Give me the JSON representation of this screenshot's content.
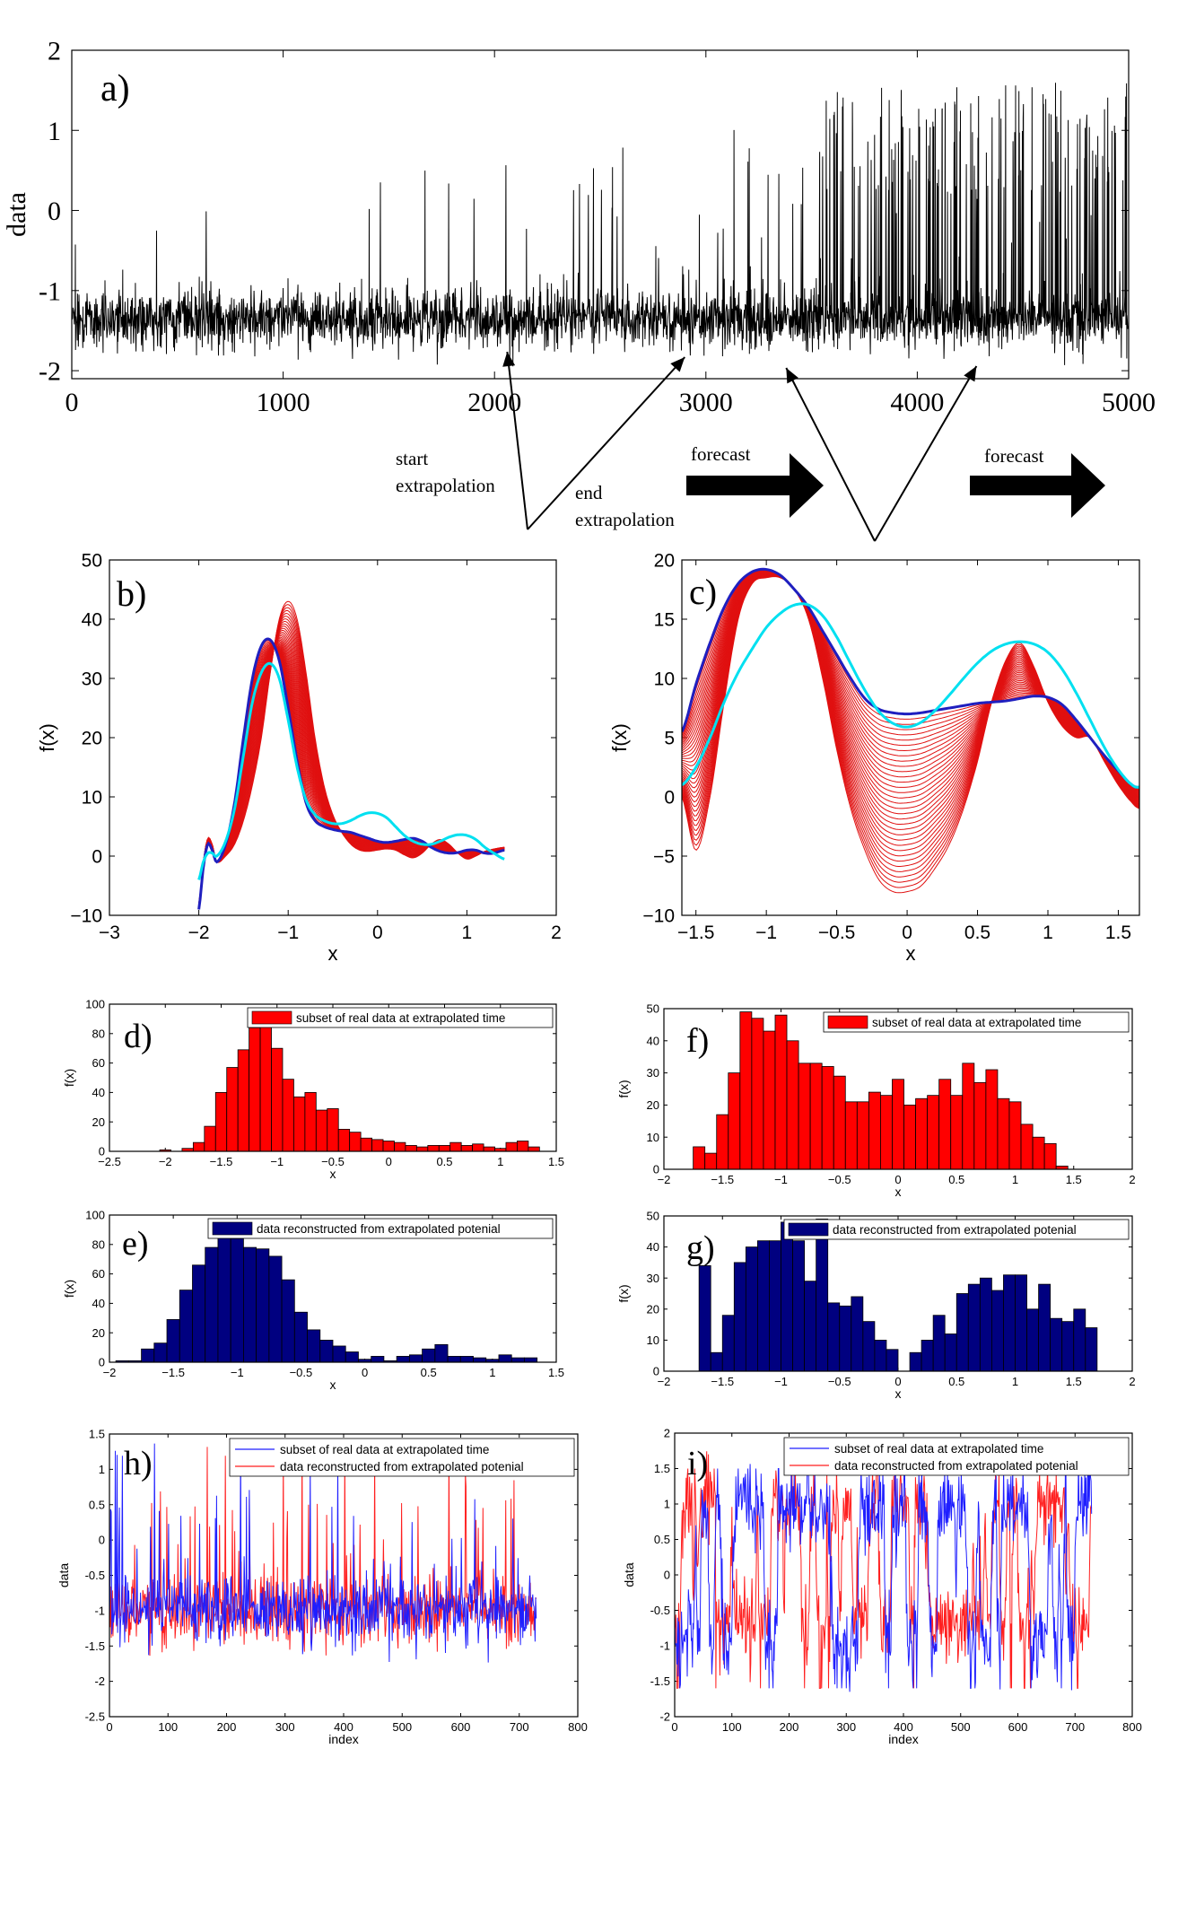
{
  "chart_data": [
    {
      "id": "a",
      "type": "line",
      "panel_label": "a)",
      "ylabel": "data",
      "xlabel": "",
      "xlim": [
        0,
        5000
      ],
      "ylim": [
        -2.1,
        2
      ],
      "xticks": [
        0,
        1000,
        2000,
        3000,
        4000,
        5000
      ],
      "yticks": [
        -2,
        -1,
        0,
        1,
        2
      ],
      "color": "#000000",
      "series_description": "noisy time series of 5000 samples, baseline near -1.3 with upward spikes; spikes grow in frequency and height after index 3500 reaching about 1.6",
      "annotations": {
        "start_extrapolation": [
          "start",
          "extrapolation"
        ],
        "end_extrapolation": [
          "end",
          "extrapolation"
        ],
        "forecast_1": "forecast",
        "forecast_2": "forecast",
        "arrow_targets_x": [
          2060,
          2900,
          3380,
          4280
        ],
        "forecast_arrow_spans_x": [
          2930,
          3560,
          4270,
          4900
        ]
      }
    },
    {
      "id": "b",
      "type": "line",
      "panel_label": "b)",
      "xlabel": "x",
      "ylabel": "f(x)",
      "xlim": [
        -3,
        2
      ],
      "ylim": [
        -10,
        50
      ],
      "xticks": [
        -3,
        -2,
        -1,
        0,
        1,
        2
      ],
      "xtick_labels": [
        "−3",
        "−2",
        "−1",
        "0",
        "1",
        "2"
      ],
      "yticks": [
        -10,
        0,
        10,
        20,
        30,
        40,
        50
      ],
      "ytick_labels": [
        "−10",
        "0",
        "10",
        "20",
        "30",
        "40",
        "50"
      ],
      "series": [
        {
          "name": "potential start (blue)",
          "color": "#1f1fbf",
          "x": [
            -2.0,
            -1.95,
            -1.9,
            -1.85,
            -1.8,
            -1.7,
            -1.6,
            -1.5,
            -1.4,
            -1.3,
            -1.2,
            -1.1,
            -1.0,
            -0.9,
            -0.8,
            -0.7,
            -0.6,
            -0.5,
            -0.4,
            -0.3,
            -0.2,
            -0.1,
            0.0,
            0.1,
            0.2,
            0.3,
            0.4,
            0.5,
            0.6,
            0.7,
            0.8,
            0.9,
            1.0,
            1.1,
            1.2,
            1.3,
            1.42
          ],
          "y": [
            -9,
            -2,
            2,
            1,
            -1,
            2,
            9,
            20,
            30,
            35.5,
            36.5,
            33,
            25,
            16,
            9,
            6,
            5,
            4.5,
            4.2,
            4,
            3.5,
            3,
            2.5,
            2.3,
            2.5,
            2.8,
            3,
            2.5,
            1.5,
            0.8,
            0.5,
            0.6,
            1,
            1,
            0.5,
            0.5,
            1
          ]
        },
        {
          "name": "potential end (red envelope)",
          "color": "#e01010",
          "x": [
            -2.0,
            -1.95,
            -1.9,
            -1.85,
            -1.8,
            -1.7,
            -1.6,
            -1.5,
            -1.4,
            -1.3,
            -1.2,
            -1.1,
            -1.0,
            -0.9,
            -0.8,
            -0.7,
            -0.6,
            -0.5,
            -0.4,
            -0.3,
            -0.2,
            -0.1,
            0.0,
            0.1,
            0.2,
            0.3,
            0.4,
            0.5,
            0.6,
            0.7,
            0.8,
            0.9,
            1.0,
            1.1,
            1.2,
            1.3,
            1.42
          ],
          "y": [
            -8,
            -1,
            3,
            2,
            -1,
            0,
            2,
            6,
            12,
            20,
            31,
            40,
            43,
            40,
            31,
            20,
            12,
            7,
            4,
            2,
            1,
            0.8,
            1.0,
            1.2,
            1.0,
            0.2,
            -0.3,
            0.5,
            2,
            2.8,
            2,
            0.5,
            -0.5,
            0.0,
            0.8,
            1.2,
            1.5
          ]
        },
        {
          "name": "fitted potential (cyan)",
          "color": "#00e0f0",
          "x": [
            -2.0,
            -1.95,
            -1.9,
            -1.85,
            -1.8,
            -1.7,
            -1.6,
            -1.5,
            -1.4,
            -1.3,
            -1.2,
            -1.1,
            -1.0,
            -0.9,
            -0.8,
            -0.7,
            -0.6,
            -0.5,
            -0.4,
            -0.3,
            -0.2,
            -0.1,
            0.0,
            0.1,
            0.2,
            0.3,
            0.4,
            0.5,
            0.6,
            0.7,
            0.8,
            0.9,
            1.0,
            1.1,
            1.2,
            1.3,
            1.42
          ],
          "y": [
            -4,
            -1,
            0.5,
            0.5,
            0,
            2.5,
            8,
            17,
            26,
            31,
            32.5,
            30,
            23,
            15,
            9.5,
            7,
            6,
            5.5,
            5.5,
            6,
            6.8,
            7.3,
            7.2,
            6.5,
            5,
            3.5,
            2.5,
            2,
            2,
            2.5,
            3.2,
            3.6,
            3.5,
            2.8,
            1.5,
            0.5,
            -0.5
          ]
        }
      ]
    },
    {
      "id": "c",
      "type": "line",
      "panel_label": "c)",
      "xlabel": "x",
      "ylabel": "f(x)",
      "xlim": [
        -1.6,
        1.65
      ],
      "ylim": [
        -10,
        20
      ],
      "xticks": [
        -1.5,
        -1,
        -0.5,
        0,
        0.5,
        1,
        1.5
      ],
      "xtick_labels": [
        "−1.5",
        "−1",
        "−0.5",
        "0",
        "0.5",
        "1",
        "1.5"
      ],
      "yticks": [
        -10,
        -5,
        0,
        5,
        10,
        15,
        20
      ],
      "ytick_labels": [
        "−10",
        "−5",
        "0",
        "5",
        "10",
        "15",
        "20"
      ],
      "series": [
        {
          "name": "potential start (blue)",
          "color": "#1f1fbf",
          "x": [
            -1.6,
            -1.5,
            -1.4,
            -1.3,
            -1.2,
            -1.1,
            -1.0,
            -0.9,
            -0.8,
            -0.7,
            -0.6,
            -0.5,
            -0.4,
            -0.3,
            -0.2,
            -0.1,
            0.0,
            0.1,
            0.2,
            0.3,
            0.4,
            0.5,
            0.6,
            0.7,
            0.8,
            0.9,
            1.0,
            1.1,
            1.2,
            1.3,
            1.4,
            1.5,
            1.6,
            1.65
          ],
          "y": [
            5.5,
            9.5,
            13,
            16,
            18,
            19,
            19.2,
            18.7,
            17.5,
            16,
            14,
            12,
            10,
            8.3,
            7.4,
            7.1,
            7.0,
            7.1,
            7.3,
            7.5,
            7.7,
            7.9,
            8.0,
            8.1,
            8.3,
            8.5,
            8.4,
            7.8,
            6.5,
            5,
            3.5,
            2.2,
            1.0,
            0.8
          ]
        },
        {
          "name": "potential end (red envelope)",
          "color": "#e01010",
          "x": [
            -1.6,
            -1.5,
            -1.4,
            -1.3,
            -1.2,
            -1.1,
            -1.0,
            -0.9,
            -0.8,
            -0.7,
            -0.6,
            -0.5,
            -0.4,
            -0.3,
            -0.2,
            -0.1,
            0.0,
            0.1,
            0.2,
            0.3,
            0.4,
            0.5,
            0.6,
            0.7,
            0.8,
            0.9,
            1.0,
            1.1,
            1.2,
            1.3,
            1.4,
            1.5,
            1.6,
            1.65
          ],
          "y": [
            0,
            -4.5,
            0,
            8,
            15,
            18,
            18.5,
            18.5,
            17.5,
            15,
            10,
            4,
            -1,
            -4.5,
            -7,
            -8,
            -8,
            -7.5,
            -6,
            -4,
            -1,
            3,
            8,
            11.5,
            13,
            11,
            8,
            6,
            5,
            5,
            3,
            1,
            -0.5,
            -1
          ]
        },
        {
          "name": "fitted potential (cyan)",
          "color": "#00e0f0",
          "x": [
            -1.6,
            -1.5,
            -1.4,
            -1.3,
            -1.2,
            -1.1,
            -1.0,
            -0.9,
            -0.8,
            -0.7,
            -0.6,
            -0.5,
            -0.4,
            -0.3,
            -0.2,
            -0.1,
            0.0,
            0.1,
            0.2,
            0.3,
            0.4,
            0.5,
            0.6,
            0.7,
            0.8,
            0.9,
            1.0,
            1.1,
            1.2,
            1.3,
            1.4,
            1.5,
            1.6,
            1.65
          ],
          "y": [
            1,
            2.5,
            5,
            8,
            10.5,
            12.5,
            14.3,
            15.5,
            16.2,
            16.2,
            15.3,
            13.5,
            11.2,
            9,
            7.2,
            6.2,
            5.9,
            6.3,
            7.3,
            8.6,
            10,
            11.3,
            12.3,
            12.9,
            13.1,
            12.9,
            12.2,
            10.8,
            8.8,
            6.5,
            4.2,
            2.3,
            1.0,
            0.8
          ]
        }
      ]
    },
    {
      "id": "d",
      "type": "bar",
      "panel_label": "d)",
      "xlabel": "x",
      "ylabel": "f(x)",
      "xlim": [
        -2.5,
        1.5
      ],
      "ylim": [
        0,
        100
      ],
      "xticks": [
        -2.5,
        -2,
        -1.5,
        -1,
        -0.5,
        0,
        0.5,
        1,
        1.5
      ],
      "xtick_labels": [
        "−2.5",
        "−2",
        "−1.5",
        "−1",
        "−0.5",
        "0",
        "0.5",
        "1",
        "1.5"
      ],
      "yticks": [
        0,
        20,
        40,
        60,
        80,
        100
      ],
      "legend": "subset of real data at extrapolated time",
      "color": "#ff0000",
      "bin_start": -2.05,
      "bin_width": 0.1,
      "values": [
        1,
        0,
        2,
        6,
        17,
        40,
        57,
        69,
        84,
        85,
        70,
        49,
        37,
        40,
        28,
        29,
        15,
        13,
        9,
        8,
        7,
        6,
        4,
        3,
        4,
        4,
        6,
        4,
        5,
        3,
        2,
        6,
        7,
        3
      ]
    },
    {
      "id": "e",
      "type": "bar",
      "panel_label": "e)",
      "xlabel": "x",
      "ylabel": "f(x)",
      "xlim": [
        -2,
        1.5
      ],
      "ylim": [
        0,
        100
      ],
      "xticks": [
        -2,
        -1.5,
        -1,
        -0.5,
        0,
        0.5,
        1,
        1.5
      ],
      "xtick_labels": [
        "−2",
        "−1.5",
        "−1",
        "−0.5",
        "0",
        "0.5",
        "1",
        "1.5"
      ],
      "yticks": [
        0,
        20,
        40,
        60,
        80,
        100
      ],
      "legend": "data reconstructed from extrapolated potenial",
      "color": "#000080",
      "bin_start": -1.95,
      "bin_width": 0.1,
      "values": [
        1,
        1,
        9,
        13,
        29,
        49,
        66,
        78,
        87,
        84,
        78,
        77,
        72,
        56,
        34,
        22,
        15,
        11,
        7,
        2,
        4,
        1,
        4,
        5,
        9,
        12,
        4,
        4,
        3,
        2,
        5,
        3,
        3
      ]
    },
    {
      "id": "f",
      "type": "bar",
      "panel_label": "f)",
      "xlabel": "x",
      "ylabel": "f(x)",
      "xlim": [
        -2,
        2
      ],
      "ylim": [
        0,
        50
      ],
      "xticks": [
        -2,
        -1.5,
        -1,
        -0.5,
        0,
        0.5,
        1,
        1.5,
        2
      ],
      "xtick_labels": [
        "−2",
        "−1.5",
        "−1",
        "−0.5",
        "0",
        "0.5",
        "1",
        "1.5",
        "2"
      ],
      "yticks": [
        0,
        10,
        20,
        30,
        40,
        50
      ],
      "legend": "subset of real data at extrapolated time",
      "color": "#ff0000",
      "bin_start": -1.75,
      "bin_width": 0.1,
      "values": [
        7,
        5,
        17,
        30,
        49,
        47,
        43,
        48,
        40,
        33,
        33,
        32,
        29,
        21,
        21,
        24,
        23,
        28,
        20,
        22,
        23,
        28,
        23,
        33,
        27,
        31,
        22,
        21,
        14,
        10,
        8,
        1
      ]
    },
    {
      "id": "g",
      "type": "bar",
      "panel_label": "g)",
      "xlabel": "x",
      "ylabel": "f(x)",
      "xlim": [
        -2,
        2
      ],
      "ylim": [
        0,
        50
      ],
      "xticks": [
        -2,
        -1.5,
        -1,
        -0.5,
        0,
        0.5,
        1,
        1.5,
        2
      ],
      "xtick_labels": [
        "−2",
        "−1.5",
        "−1",
        "−0.5",
        "0",
        "0.5",
        "1",
        "1.5",
        "2"
      ],
      "yticks": [
        0,
        10,
        20,
        30,
        40,
        50
      ],
      "legend": "data reconstructed from extrapolated potenial",
      "color": "#000080",
      "bin_start": -1.7,
      "bin_width": 0.1,
      "values": [
        34,
        6,
        18,
        35,
        40,
        42,
        42,
        48,
        42,
        29,
        49,
        22,
        21,
        24,
        16,
        10,
        7,
        0,
        6,
        10,
        18,
        12,
        25,
        28,
        30,
        26,
        31,
        31,
        20,
        28,
        17,
        16,
        20,
        14
      ]
    },
    {
      "id": "h",
      "type": "line",
      "panel_label": "h)",
      "xlabel": "index",
      "ylabel": "data",
      "xlim": [
        0,
        800
      ],
      "ylim": [
        -2.5,
        1.5
      ],
      "xticks": [
        0,
        100,
        200,
        300,
        400,
        500,
        600,
        700,
        800
      ],
      "yticks": [
        -2.5,
        -2,
        -1.5,
        -1,
        -0.5,
        0,
        0.5,
        1,
        1.5
      ],
      "legend": [
        "subset of real data at extrapolated time",
        "data reconstructed from extrapolated potenial"
      ],
      "colors": [
        "#1f1fff",
        "#ff1f1f"
      ],
      "series_description": "two noisy series of about 730 samples fluctuating near -1 with occasional spikes up to 1.3"
    },
    {
      "id": "i",
      "type": "line",
      "panel_label": "i)",
      "xlabel": "index",
      "ylabel": "data",
      "xlim": [
        0,
        800
      ],
      "ylim": [
        -2,
        2
      ],
      "xticks": [
        0,
        100,
        200,
        300,
        400,
        500,
        600,
        700,
        800
      ],
      "yticks": [
        -2,
        -1.5,
        -1,
        -0.5,
        0,
        0.5,
        1,
        1.5,
        2
      ],
      "legend": [
        "subset of real data at extrapolated time",
        "data reconstructed from extrapolated potenial"
      ],
      "colors": [
        "#1f1fff",
        "#ff1f1f"
      ],
      "series_description": "two bistable noisy series of about 730 samples switching between about -1 and about 1"
    }
  ]
}
